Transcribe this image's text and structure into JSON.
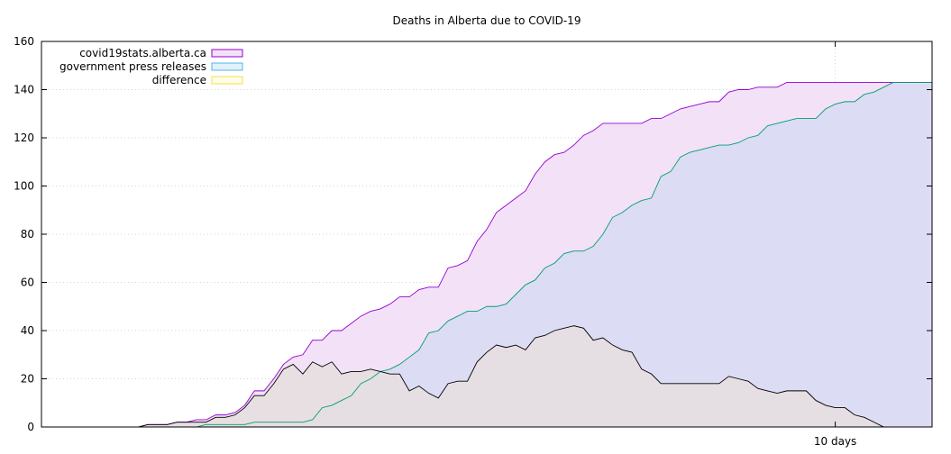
{
  "chart_data": {
    "type": "area",
    "title": "Deaths in Alberta due to COVID-19",
    "xlabel": "",
    "ylabel": "",
    "ylim": [
      0,
      160
    ],
    "yticks": [
      "0",
      "20",
      "40",
      "60",
      "80",
      "100",
      "120",
      "140",
      "160"
    ],
    "xtick_label": "10 days",
    "x_days": [
      0,
      1,
      2,
      3,
      4,
      5,
      6,
      7,
      8,
      9,
      10,
      11,
      12,
      13,
      14,
      15,
      16,
      17,
      18,
      19,
      20,
      21,
      22,
      23,
      24,
      25,
      26,
      27,
      28,
      29,
      30,
      31,
      32,
      33,
      34,
      35,
      36,
      37,
      38,
      39,
      40,
      41,
      42,
      43,
      44,
      45,
      46,
      47,
      48,
      49,
      50,
      51,
      52,
      53,
      54,
      55,
      56,
      57,
      58,
      59,
      60,
      61,
      62,
      63,
      64,
      65,
      66,
      67,
      68,
      69,
      70,
      71,
      72,
      73,
      74,
      75,
      76,
      77,
      78,
      79,
      80,
      81,
      82,
      83,
      84,
      85,
      86,
      87,
      88,
      89,
      90,
      91,
      92
    ],
    "xtick_day": 82,
    "grid": true,
    "legend_position": "top-left",
    "series": [
      {
        "name": "covid19stats.alberta.ca",
        "color": "#9400d3",
        "fill": "#f2e1f7",
        "values": [
          0,
          0,
          0,
          0,
          0,
          0,
          0,
          0,
          0,
          0,
          0,
          1,
          1,
          1,
          2,
          2,
          3,
          3,
          5,
          5,
          6,
          9,
          15,
          15,
          20,
          26,
          29,
          30,
          36,
          36,
          40,
          40,
          43,
          46,
          48,
          49,
          51,
          54,
          54,
          57,
          58,
          58,
          66,
          67,
          69,
          77,
          82,
          89,
          92,
          95,
          98,
          105,
          110,
          113,
          114,
          117,
          121,
          123,
          126,
          126,
          126,
          126,
          126,
          128,
          128,
          130,
          132,
          133,
          134,
          135,
          135,
          139,
          140,
          140,
          141,
          141,
          141,
          143,
          143,
          143,
          143,
          143,
          143,
          143,
          143,
          143,
          143,
          143,
          143,
          143,
          143,
          143,
          143
        ]
      },
      {
        "name": "government press releases",
        "color": "#009e73",
        "fill": "#dcdcf4",
        "values": [
          0,
          0,
          0,
          0,
          0,
          0,
          0,
          0,
          0,
          0,
          0,
          0,
          0,
          0,
          0,
          0,
          0,
          1,
          1,
          1,
          1,
          1,
          2,
          2,
          2,
          2,
          2,
          2,
          3,
          8,
          9,
          11,
          13,
          18,
          20,
          23,
          24,
          26,
          29,
          32,
          39,
          40,
          44,
          46,
          48,
          48,
          50,
          50,
          51,
          55,
          59,
          61,
          66,
          68,
          72,
          73,
          73,
          75,
          80,
          87,
          89,
          92,
          94,
          95,
          104,
          106,
          112,
          114,
          115,
          116,
          117,
          117,
          118,
          120,
          121,
          125,
          126,
          127,
          128,
          128,
          128,
          132,
          134,
          135,
          135,
          138,
          139,
          141,
          143,
          143,
          143,
          143,
          143
        ]
      },
      {
        "name": "difference",
        "color": "#000000",
        "fill": "#e6dede",
        "values": [
          0,
          0,
          0,
          0,
          0,
          0,
          0,
          0,
          0,
          0,
          0,
          1,
          1,
          1,
          2,
          2,
          2,
          2,
          4,
          4,
          5,
          8,
          13,
          13,
          18,
          24,
          26,
          22,
          27,
          25,
          27,
          22,
          23,
          23,
          24,
          23,
          22,
          22,
          15,
          17,
          14,
          12,
          18,
          19,
          19,
          27,
          31,
          34,
          33,
          34,
          32,
          37,
          38,
          40,
          41,
          42,
          41,
          36,
          37,
          34,
          32,
          31,
          24,
          22,
          18,
          18,
          18,
          18,
          18,
          18,
          18,
          21,
          20,
          19,
          16,
          15,
          14,
          15,
          15,
          15,
          11,
          9,
          8,
          8,
          5,
          4,
          2,
          0,
          0,
          0,
          0,
          0,
          0
        ]
      }
    ]
  },
  "legend": {
    "colors": {
      "primary": "#9400d3",
      "secondary": "#56b4e9",
      "tertiary": "#f0e442"
    }
  }
}
